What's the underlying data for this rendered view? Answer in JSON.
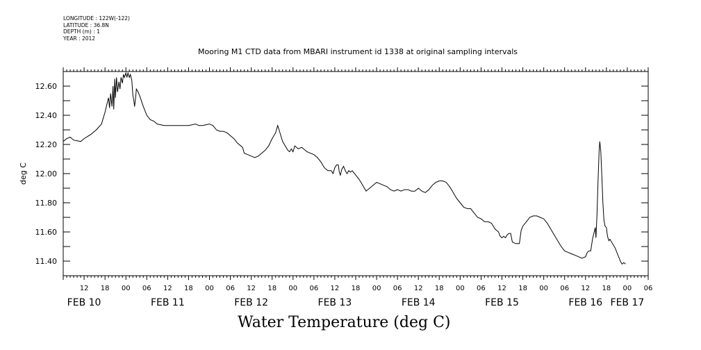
{
  "meta": {
    "longitude": "LONGITUDE : 122W(-122)",
    "latitude": "LATITUDE : 36.8N",
    "depth": "DEPTH (m) : 1",
    "year": "YEAR : 2012"
  },
  "chart_data": {
    "type": "line",
    "title": "Mooring M1 CTD data from MBARI instrument id 1338 at original sampling intervals",
    "xlabel": "Water Temperature (deg C)",
    "ylabel": "deg C",
    "ylim": [
      11.3,
      12.7
    ],
    "yticks": [
      11.4,
      11.6,
      11.8,
      12.0,
      12.2,
      12.4,
      12.6
    ],
    "ytick_labels": [
      "11.40",
      "11.60",
      "11.80",
      "12.00",
      "12.20",
      "12.40",
      "12.60"
    ],
    "xlim_hours": [
      6,
      174
    ],
    "x_unit": "hours since 2012-02-10 00:00",
    "hour_ticks": [
      {
        "h": 12,
        "label": "12"
      },
      {
        "h": 18,
        "label": "18"
      },
      {
        "h": 24,
        "label": "00"
      },
      {
        "h": 30,
        "label": "06"
      },
      {
        "h": 36,
        "label": "12"
      },
      {
        "h": 42,
        "label": "18"
      },
      {
        "h": 48,
        "label": "00"
      },
      {
        "h": 54,
        "label": "06"
      },
      {
        "h": 60,
        "label": "12"
      },
      {
        "h": 66,
        "label": "18"
      },
      {
        "h": 72,
        "label": "00"
      },
      {
        "h": 78,
        "label": "06"
      },
      {
        "h": 84,
        "label": "12"
      },
      {
        "h": 90,
        "label": "18"
      },
      {
        "h": 96,
        "label": "00"
      },
      {
        "h": 102,
        "label": "06"
      },
      {
        "h": 108,
        "label": "12"
      },
      {
        "h": 114,
        "label": "18"
      },
      {
        "h": 120,
        "label": "00"
      },
      {
        "h": 126,
        "label": "06"
      },
      {
        "h": 132,
        "label": "12"
      },
      {
        "h": 138,
        "label": "18"
      },
      {
        "h": 144,
        "label": "00"
      },
      {
        "h": 150,
        "label": "06"
      },
      {
        "h": 156,
        "label": "12"
      },
      {
        "h": 162,
        "label": "18"
      },
      {
        "h": 168,
        "label": "00"
      },
      {
        "h": 174,
        "label": "06"
      }
    ],
    "day_labels": [
      {
        "h": 12,
        "label": "FEB 10"
      },
      {
        "h": 36,
        "label": "FEB 11"
      },
      {
        "h": 60,
        "label": "FEB 12"
      },
      {
        "h": 84,
        "label": "FEB 13"
      },
      {
        "h": 108,
        "label": "FEB 14"
      },
      {
        "h": 132,
        "label": "FEB 15"
      },
      {
        "h": 156,
        "label": "FEB 16"
      },
      {
        "h": 168,
        "label": "FEB 17"
      }
    ],
    "series": [
      {
        "points": [
          [
            6.0,
            12.22
          ],
          [
            7.0,
            12.24
          ],
          [
            8.0,
            12.25
          ],
          [
            9.0,
            12.23
          ],
          [
            11.0,
            12.22
          ],
          [
            12.0,
            12.24
          ],
          [
            14.0,
            12.27
          ],
          [
            15.5,
            12.3
          ],
          [
            17.0,
            12.34
          ],
          [
            17.5,
            12.38
          ],
          [
            18.0,
            12.42
          ],
          [
            18.5,
            12.47
          ],
          [
            19.0,
            12.52
          ],
          [
            19.3,
            12.45
          ],
          [
            19.6,
            12.55
          ],
          [
            20.0,
            12.46
          ],
          [
            20.3,
            12.6
          ],
          [
            20.5,
            12.44
          ],
          [
            20.8,
            12.65
          ],
          [
            21.0,
            12.52
          ],
          [
            21.3,
            12.66
          ],
          [
            21.6,
            12.56
          ],
          [
            22.0,
            12.63
          ],
          [
            22.3,
            12.58
          ],
          [
            22.6,
            12.66
          ],
          [
            23.0,
            12.62
          ],
          [
            23.3,
            12.68
          ],
          [
            23.6,
            12.66
          ],
          [
            24.0,
            12.69
          ],
          [
            24.3,
            12.66
          ],
          [
            24.6,
            12.69
          ],
          [
            25.0,
            12.66
          ],
          [
            25.3,
            12.68
          ],
          [
            25.7,
            12.64
          ],
          [
            26.0,
            12.54
          ],
          [
            26.3,
            12.5
          ],
          [
            26.5,
            12.46
          ],
          [
            26.8,
            12.52
          ],
          [
            27.0,
            12.58
          ],
          [
            27.5,
            12.56
          ],
          [
            28.0,
            12.53
          ],
          [
            29.0,
            12.46
          ],
          [
            30.0,
            12.4
          ],
          [
            31.0,
            12.37
          ],
          [
            32.0,
            12.36
          ],
          [
            33.0,
            12.34
          ],
          [
            35.0,
            12.33
          ],
          [
            38.0,
            12.33
          ],
          [
            40.0,
            12.33
          ],
          [
            42.0,
            12.33
          ],
          [
            44.0,
            12.34
          ],
          [
            45.0,
            12.33
          ],
          [
            46.0,
            12.33
          ],
          [
            48.0,
            12.34
          ],
          [
            49.0,
            12.33
          ],
          [
            50.0,
            12.3
          ],
          [
            51.0,
            12.29
          ],
          [
            52.0,
            12.29
          ],
          [
            53.0,
            12.28
          ],
          [
            54.0,
            12.26
          ],
          [
            55.0,
            12.24
          ],
          [
            56.0,
            12.21
          ],
          [
            57.5,
            12.18
          ],
          [
            58.0,
            12.14
          ],
          [
            59.0,
            12.13
          ],
          [
            60.0,
            12.12
          ],
          [
            61.0,
            12.11
          ],
          [
            62.0,
            12.12
          ],
          [
            63.0,
            12.14
          ],
          [
            64.0,
            12.16
          ],
          [
            65.0,
            12.19
          ],
          [
            66.0,
            12.24
          ],
          [
            67.0,
            12.28
          ],
          [
            67.6,
            12.33
          ],
          [
            68.0,
            12.3
          ],
          [
            68.5,
            12.26
          ],
          [
            69.0,
            12.22
          ],
          [
            69.5,
            12.2
          ],
          [
            70.0,
            12.18
          ],
          [
            70.5,
            12.16
          ],
          [
            71.0,
            12.15
          ],
          [
            71.5,
            12.17
          ],
          [
            72.0,
            12.15
          ],
          [
            72.5,
            12.19
          ],
          [
            73.0,
            12.18
          ],
          [
            73.5,
            12.17
          ],
          [
            74.5,
            12.18
          ],
          [
            75.0,
            12.17
          ],
          [
            76.0,
            12.15
          ],
          [
            77.0,
            12.14
          ],
          [
            78.0,
            12.13
          ],
          [
            79.0,
            12.11
          ],
          [
            80.0,
            12.08
          ],
          [
            81.0,
            12.04
          ],
          [
            82.0,
            12.02
          ],
          [
            83.0,
            12.02
          ],
          [
            83.5,
            12.0
          ],
          [
            84.0,
            12.04
          ],
          [
            84.5,
            12.06
          ],
          [
            85.0,
            12.06
          ],
          [
            85.3,
            12.01
          ],
          [
            85.6,
            11.99
          ],
          [
            86.0,
            12.03
          ],
          [
            86.5,
            12.05
          ],
          [
            87.0,
            12.02
          ],
          [
            87.5,
            12.0
          ],
          [
            88.0,
            12.02
          ],
          [
            88.5,
            12.01
          ],
          [
            89.0,
            12.02
          ],
          [
            90.0,
            11.99
          ],
          [
            91.0,
            11.96
          ],
          [
            92.0,
            11.92
          ],
          [
            93.0,
            11.88
          ],
          [
            94.0,
            11.9
          ],
          [
            95.0,
            11.92
          ],
          [
            96.0,
            11.94
          ],
          [
            97.0,
            11.93
          ],
          [
            98.0,
            11.92
          ],
          [
            99.0,
            11.91
          ],
          [
            100.0,
            11.89
          ],
          [
            101.0,
            11.88
          ],
          [
            102.0,
            11.89
          ],
          [
            103.0,
            11.88
          ],
          [
            104.0,
            11.89
          ],
          [
            105.0,
            11.89
          ],
          [
            106.0,
            11.88
          ],
          [
            107.0,
            11.88
          ],
          [
            108.0,
            11.9
          ],
          [
            109.0,
            11.88
          ],
          [
            110.0,
            11.87
          ],
          [
            111.0,
            11.89
          ],
          [
            112.0,
            11.92
          ],
          [
            113.0,
            11.94
          ],
          [
            114.0,
            11.95
          ],
          [
            115.0,
            11.95
          ],
          [
            116.0,
            11.94
          ],
          [
            117.0,
            11.91
          ],
          [
            118.0,
            11.87
          ],
          [
            119.0,
            11.83
          ],
          [
            120.0,
            11.8
          ],
          [
            121.0,
            11.77
          ],
          [
            122.0,
            11.76
          ],
          [
            123.0,
            11.76
          ],
          [
            124.0,
            11.73
          ],
          [
            125.0,
            11.7
          ],
          [
            126.0,
            11.69
          ],
          [
            127.0,
            11.67
          ],
          [
            128.0,
            11.67
          ],
          [
            129.0,
            11.66
          ],
          [
            130.0,
            11.62
          ],
          [
            131.0,
            11.6
          ],
          [
            131.5,
            11.57
          ],
          [
            132.0,
            11.56
          ],
          [
            132.5,
            11.57
          ],
          [
            133.0,
            11.56
          ],
          [
            133.5,
            11.58
          ],
          [
            134.0,
            11.59
          ],
          [
            134.5,
            11.59
          ],
          [
            135.0,
            11.53
          ],
          [
            136.0,
            11.52
          ],
          [
            137.0,
            11.52
          ],
          [
            137.5,
            11.61
          ],
          [
            138.0,
            11.64
          ],
          [
            139.0,
            11.67
          ],
          [
            140.0,
            11.7
          ],
          [
            141.0,
            11.71
          ],
          [
            142.0,
            11.71
          ],
          [
            143.0,
            11.7
          ],
          [
            144.0,
            11.69
          ],
          [
            145.0,
            11.66
          ],
          [
            146.0,
            11.62
          ],
          [
            147.0,
            11.58
          ],
          [
            148.0,
            11.54
          ],
          [
            149.0,
            11.5
          ],
          [
            150.0,
            11.47
          ],
          [
            151.0,
            11.46
          ],
          [
            152.0,
            11.45
          ],
          [
            153.0,
            11.44
          ],
          [
            154.0,
            11.43
          ],
          [
            155.0,
            11.42
          ],
          [
            156.0,
            11.43
          ],
          [
            156.5,
            11.46
          ],
          [
            157.0,
            11.47
          ],
          [
            157.5,
            11.47
          ],
          [
            158.0,
            11.55
          ],
          [
            158.5,
            11.6
          ],
          [
            158.8,
            11.63
          ],
          [
            159.0,
            11.56
          ],
          [
            159.3,
            11.72
          ],
          [
            159.6,
            11.95
          ],
          [
            159.9,
            12.15
          ],
          [
            160.1,
            12.22
          ],
          [
            160.4,
            12.15
          ],
          [
            160.7,
            11.98
          ],
          [
            161.0,
            11.8
          ],
          [
            161.3,
            11.68
          ],
          [
            161.6,
            11.64
          ],
          [
            162.0,
            11.63
          ],
          [
            162.3,
            11.57
          ],
          [
            162.7,
            11.54
          ],
          [
            163.0,
            11.55
          ],
          [
            163.5,
            11.53
          ],
          [
            164.0,
            11.51
          ],
          [
            164.5,
            11.49
          ],
          [
            165.0,
            11.46
          ],
          [
            165.5,
            11.43
          ],
          [
            166.0,
            11.4
          ],
          [
            166.5,
            11.38
          ],
          [
            167.0,
            11.39
          ],
          [
            167.5,
            11.38
          ]
        ]
      }
    ]
  }
}
